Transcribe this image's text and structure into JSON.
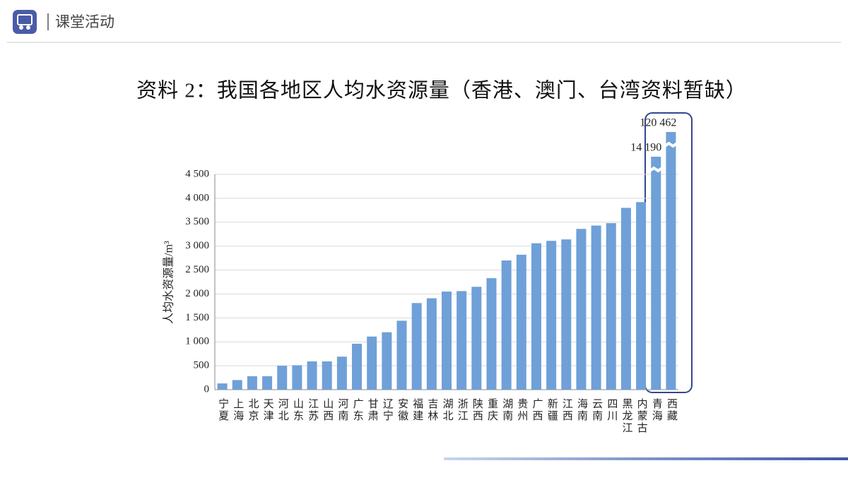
{
  "header": {
    "title": "课堂活动"
  },
  "chart_data": {
    "type": "bar",
    "title": "资料 2：我国各地区人均水资源量（香港、澳门、台湾资料暂缺）",
    "y_label": "人均水资源量/m³",
    "categories": [
      "宁夏",
      "上海",
      "北京",
      "天津",
      "河北",
      "山东",
      "江苏",
      "山西",
      "河南",
      "广东",
      "甘肃",
      "辽宁",
      "安徽",
      "福建",
      "吉林",
      "湖北",
      "浙江",
      "陕西",
      "重庆",
      "湖南",
      "贵州",
      "广西",
      "新疆",
      "江西",
      "海南",
      "云南",
      "四川",
      "黑龙江",
      "内蒙古",
      "青海",
      "西藏"
    ],
    "values": [
      130,
      200,
      280,
      280,
      500,
      510,
      590,
      590,
      690,
      960,
      1110,
      1200,
      1440,
      1810,
      1910,
      2050,
      2060,
      2150,
      2330,
      2700,
      2820,
      3060,
      3110,
      3140,
      3360,
      3430,
      3480,
      3800,
      3920,
      14190,
      120462
    ],
    "value_labels": [
      null,
      null,
      null,
      null,
      null,
      null,
      null,
      null,
      null,
      null,
      null,
      null,
      null,
      null,
      null,
      null,
      null,
      null,
      null,
      null,
      null,
      null,
      null,
      null,
      null,
      null,
      null,
      null,
      null,
      "14 190",
      "120 462"
    ],
    "color": "#6fa0d8",
    "ylim": [
      0,
      4500
    ],
    "yticks": [
      0,
      500,
      {
        "value": 1000,
        "label": "1 000"
      },
      {
        "value": 1500,
        "label": "1 500"
      },
      {
        "value": 2000,
        "label": "2 000"
      },
      {
        "value": 2500,
        "label": "2 500"
      },
      {
        "value": 3000,
        "label": "3 000"
      },
      {
        "value": 3500,
        "label": "3 500"
      },
      {
        "value": 4000,
        "label": "4 000"
      },
      {
        "value": 4500,
        "label": "4 500"
      }
    ],
    "grid": true,
    "axis_break": true
  }
}
